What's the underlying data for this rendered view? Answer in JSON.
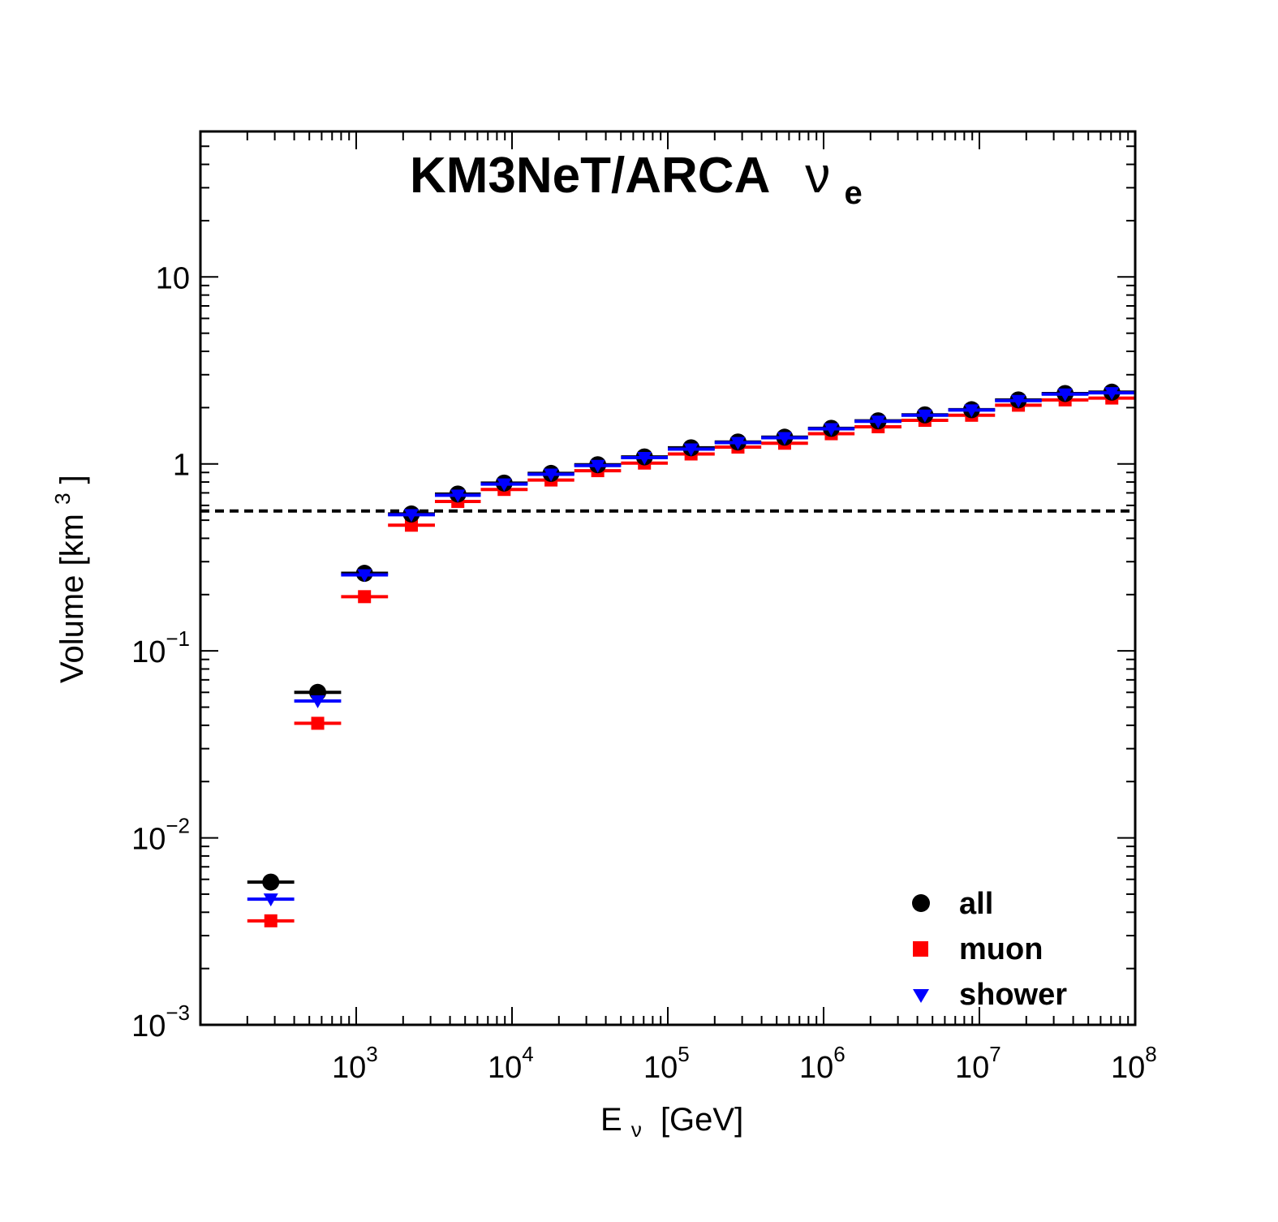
{
  "chart_data": {
    "type": "scatter",
    "title": "KM3NeT/ARCA",
    "title_symbol": "ν",
    "title_subscript": "e",
    "xlabel": "E",
    "xlabel_subscript": "ν",
    "xlabel_unit": "[GeV]",
    "ylabel": "Volume [km",
    "ylabel_superscript": "3",
    "ylabel_close": "]",
    "x_scale": "log",
    "y_scale": "log",
    "xlim": [
      100,
      100000000
    ],
    "ylim": [
      0.001,
      60
    ],
    "x_ticks": [
      {
        "base": "10",
        "exp": "3",
        "value": 1000
      },
      {
        "base": "10",
        "exp": "4",
        "value": 10000
      },
      {
        "base": "10",
        "exp": "5",
        "value": 100000
      },
      {
        "base": "10",
        "exp": "6",
        "value": 1000000
      },
      {
        "base": "10",
        "exp": "7",
        "value": 10000000
      },
      {
        "base": "10",
        "exp": "8",
        "value": 100000000
      }
    ],
    "y_ticks": [
      {
        "base": "10",
        "exp": "−3",
        "value": 0.001
      },
      {
        "base": "10",
        "exp": "−2",
        "value": 0.01
      },
      {
        "base": "10",
        "exp": "−1",
        "value": 0.1
      },
      {
        "base": "1",
        "exp": "",
        "value": 1
      },
      {
        "base": "10",
        "exp": "",
        "value": 10
      }
    ],
    "reference_line": {
      "y": 0.56,
      "style": "dashed",
      "color": "#000000"
    },
    "legend": {
      "position": "bottom-right"
    },
    "bin_edges_gev": [
      200,
      400,
      800,
      1600,
      3200,
      6300,
      12600,
      25100,
      50100,
      100000,
      200000,
      398000,
      794000,
      1580000,
      3160000,
      6310000,
      12600000,
      25100000,
      50100000,
      100000000
    ],
    "series": [
      {
        "name": "all",
        "marker": "circle",
        "color": "#000000",
        "x": [
          283,
          566,
          1130,
          2260,
          4490,
          8900,
          17800,
          35500,
          70800,
          141000,
          282000,
          562000,
          1120000,
          2240000,
          4470000,
          8910000,
          17800000,
          35500000,
          70800000
        ],
        "y": [
          0.0058,
          0.06,
          0.26,
          0.54,
          0.69,
          0.79,
          0.89,
          0.99,
          1.09,
          1.22,
          1.31,
          1.39,
          1.55,
          1.7,
          1.83,
          1.95,
          2.2,
          2.38,
          2.42
        ]
      },
      {
        "name": "muon",
        "marker": "square",
        "color": "#ff0000",
        "x": [
          283,
          566,
          1130,
          2260,
          4490,
          8900,
          17800,
          35500,
          70800,
          141000,
          282000,
          562000,
          1120000,
          2240000,
          4470000,
          8910000,
          17800000,
          35500000,
          70800000
        ],
        "y": [
          0.0036,
          0.041,
          0.195,
          0.47,
          0.63,
          0.73,
          0.82,
          0.92,
          1.01,
          1.13,
          1.23,
          1.29,
          1.45,
          1.58,
          1.71,
          1.82,
          2.06,
          2.2,
          2.25
        ]
      },
      {
        "name": "shower",
        "marker": "triangle-down",
        "color": "#0000ff",
        "x": [
          283,
          566,
          1130,
          2260,
          4490,
          8900,
          17800,
          35500,
          70800,
          141000,
          282000,
          562000,
          1120000,
          2240000,
          4470000,
          8910000,
          17800000,
          35500000,
          70800000
        ],
        "y": [
          0.0047,
          0.054,
          0.255,
          0.535,
          0.68,
          0.78,
          0.88,
          0.98,
          1.08,
          1.2,
          1.3,
          1.38,
          1.54,
          1.69,
          1.82,
          1.94,
          2.18,
          2.36,
          2.4
        ]
      }
    ]
  }
}
